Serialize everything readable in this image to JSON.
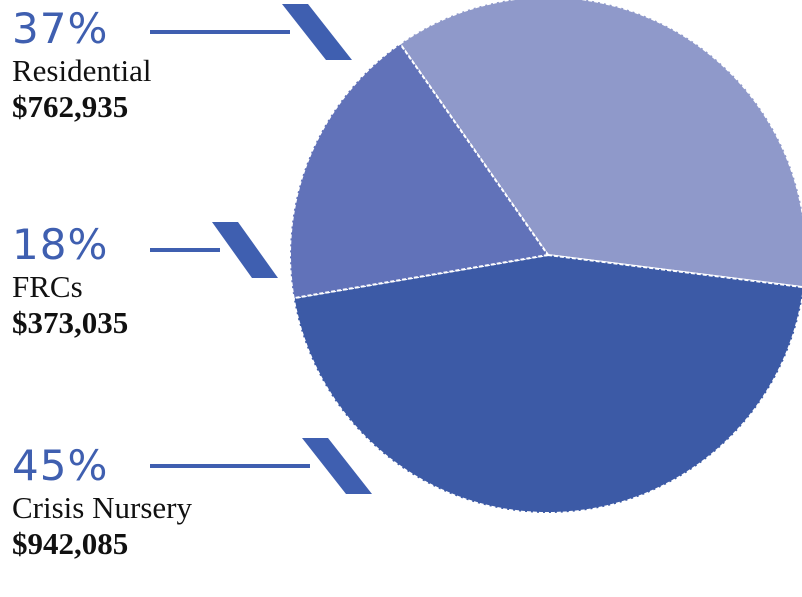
{
  "chart_data": {
    "type": "pie",
    "slices": [
      {
        "label": "Residential",
        "percent_label": "37%",
        "amount": "$762,935",
        "value": 762935,
        "color": "#8f99ca"
      },
      {
        "label": "FRCs",
        "percent_label": "18%",
        "amount": "$373,035",
        "value": 373035,
        "color": "#6172b9"
      },
      {
        "label": "Crisis Nursery",
        "percent_label": "45%",
        "amount": "$942,085",
        "value": 942085,
        "color": "#3c5aa6"
      }
    ],
    "title": "",
    "legend_placement": "left",
    "connector_color": "#3f5fb0"
  }
}
